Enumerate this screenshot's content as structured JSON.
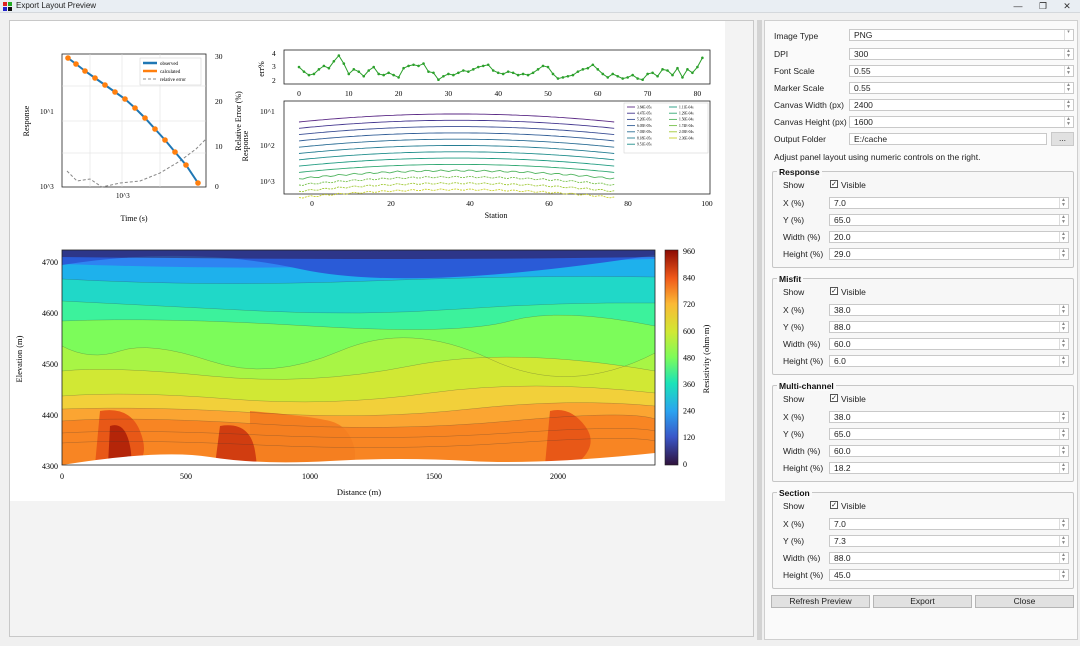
{
  "window": {
    "title": "Export Layout Preview",
    "minimize": "—",
    "restore": "❐",
    "close": "✕"
  },
  "response_plot": {
    "ylabel": "Response",
    "y2label": "Relative Error (%)",
    "xlabel": "Time (s)",
    "y_ticks": [
      "10^1",
      "10^3"
    ],
    "x_tick": "10^3",
    "y2_ticks": [
      "30",
      "20",
      "10",
      "0"
    ],
    "legend": [
      "observed",
      "calculated",
      "relative error"
    ]
  },
  "misfit_plot": {
    "ylabel": "err%",
    "y_ticks": [
      "4",
      "3",
      "2"
    ],
    "x_ticks": [
      "0",
      "10",
      "20",
      "30",
      "40",
      "50",
      "60",
      "70",
      "80"
    ],
    "values": [
      2.8,
      2.4,
      2.1,
      2.2,
      2.6,
      2.9,
      2.7,
      3.3,
      3.8,
      3.1,
      2.2,
      2.6,
      2.4,
      2.0,
      2.5,
      2.8,
      2.2,
      2.1,
      2.3,
      2.1,
      1.9,
      2.7,
      2.9,
      3.0,
      2.9,
      3.1,
      2.4,
      2.3,
      1.7,
      2.0,
      2.2,
      2.1,
      2.3,
      2.5,
      2.4,
      2.6,
      2.8,
      2.9,
      3.0,
      2.5,
      2.3,
      2.2,
      2.4,
      2.3,
      2.1,
      2.2,
      2.1,
      2.3,
      2.6,
      2.9,
      2.8,
      2.2,
      1.8,
      1.9,
      2.0,
      2.1,
      2.4,
      2.6,
      2.7,
      3.0,
      2.6,
      2.2,
      1.9,
      2.2,
      2.0,
      1.8,
      1.9,
      2.1,
      1.8,
      1.7,
      2.2,
      2.3,
      2.0,
      2.6,
      2.5,
      2.1,
      2.7,
      1.9,
      2.6,
      2.3,
      2.8,
      3.6
    ]
  },
  "multichannel_plot": {
    "ylabel": "Response",
    "xlabel": "Station",
    "y_ticks": [
      "10^1",
      "10^2",
      "10^3"
    ],
    "x_ticks": [
      "0",
      "20",
      "40",
      "60",
      "80",
      "100"
    ],
    "legend": [
      "3.84E-05s",
      "4.47E-05s",
      "5.20E-05s",
      "6.05E-05s",
      "7.03E-05s",
      "8.18E-05s",
      "9.51E-05s",
      "1.11E-04s",
      "1.29E-04s",
      "1.50E-04s",
      "1.74E-04s",
      "2.03E-04s",
      "2.36E-04s"
    ]
  },
  "section_plot": {
    "ylabel": "Elevation (m)",
    "xlabel": "Distance (m)",
    "cbar_label": "Resistivity (ohm·m)",
    "y_ticks": [
      "4700",
      "4600",
      "4500",
      "4400",
      "4300"
    ],
    "x_ticks": [
      "0",
      "500",
      "1000",
      "1500",
      "2000"
    ],
    "cbar_ticks": [
      "960",
      "840",
      "720",
      "600",
      "480",
      "360",
      "240",
      "120",
      "0"
    ]
  },
  "settings": {
    "image_type": {
      "label": "Image Type",
      "value": "PNG"
    },
    "dpi": {
      "label": "DPI",
      "value": "300"
    },
    "font_scale": {
      "label": "Font Scale",
      "value": "0.55"
    },
    "marker_scale": {
      "label": "Marker Scale",
      "value": "0.55"
    },
    "canvas_width": {
      "label": "Canvas Width (px)",
      "value": "2400"
    },
    "canvas_height": {
      "label": "Canvas Height (px)",
      "value": "1600"
    },
    "output_folder": {
      "label": "Output Folder",
      "value": "E:/cache",
      "browse": "..."
    },
    "hint": "Adjust panel layout using numeric controls on the right."
  },
  "panels": [
    {
      "title": "Response",
      "show": "Show",
      "visible": "Visible",
      "x_label": "X (%)",
      "x": "7.0",
      "y_label": "Y (%)",
      "y": "65.0",
      "w_label": "Width (%)",
      "w": "20.0",
      "h_label": "Height (%)",
      "h": "29.0"
    },
    {
      "title": "Misfit",
      "show": "Show",
      "visible": "Visible",
      "x_label": "X (%)",
      "x": "38.0",
      "y_label": "Y (%)",
      "y": "88.0",
      "w_label": "Width (%)",
      "w": "60.0",
      "h_label": "Height (%)",
      "h": "6.0"
    },
    {
      "title": "Multi-channel",
      "show": "Show",
      "visible": "Visible",
      "x_label": "X (%)",
      "x": "38.0",
      "y_label": "Y (%)",
      "y": "65.0",
      "w_label": "Width (%)",
      "w": "60.0",
      "h_label": "Height (%)",
      "h": "18.2"
    },
    {
      "title": "Section",
      "show": "Show",
      "visible": "Visible",
      "x_label": "X (%)",
      "x": "7.0",
      "y_label": "Y (%)",
      "y": "7.3",
      "w_label": "Width (%)",
      "w": "88.0",
      "h_label": "Height (%)",
      "h": "45.0"
    }
  ],
  "buttons": {
    "refresh": "Refresh Preview",
    "export": "Export",
    "close": "Close"
  },
  "colors": {
    "observed": "#1f77b4",
    "calculated": "#ff7f0e",
    "misfit_line": "#2ca02c",
    "accent": "#0078d4"
  }
}
